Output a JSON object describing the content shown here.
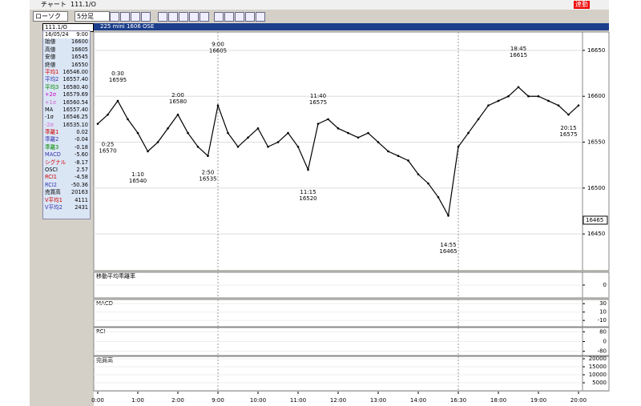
{
  "window": {
    "title": "チャート",
    "symbol": "111.1/O",
    "badge": "連動"
  },
  "toolbar": {
    "chart_type": "ローソク",
    "interval": "5分足"
  },
  "header": "225 mini 1606 OSE",
  "info": {
    "date": "16/05/24",
    "time": "9:00",
    "rows": [
      [
        "始値",
        "16600"
      ],
      [
        "高値",
        "16605"
      ],
      [
        "安値",
        "16545"
      ],
      [
        "終値",
        "16550"
      ],
      [
        "平均1",
        "16546.00"
      ],
      [
        "平均2",
        "16557.40"
      ],
      [
        "平均3",
        "16580.40"
      ],
      [
        "+2σ",
        "16579.69"
      ],
      [
        "+1σ",
        "16560.54"
      ],
      [
        "MA",
        "16557.40"
      ],
      [
        "-1σ",
        "16546.25"
      ],
      [
        "-2σ",
        "16535.10"
      ],
      [
        "乖離1",
        "0.02"
      ],
      [
        "乖離2",
        "-0.04"
      ],
      [
        "乖離3",
        "-0.18"
      ],
      [
        "MACD",
        "-5.60"
      ],
      [
        "シグナル",
        "-8.17"
      ],
      [
        "OSCI",
        "2.57"
      ],
      [
        "RCI1",
        "-4.58"
      ],
      [
        "RCI2",
        "-50.36"
      ],
      [
        "売買高",
        "20163"
      ],
      [
        "V平均1",
        "4111"
      ],
      [
        "V平均2",
        "2431"
      ]
    ]
  },
  "chart_data": [
    {
      "type": "line",
      "categories": [
        "0:00",
        null,
        null,
        null,
        "1:00",
        null,
        null,
        null,
        "2:00",
        null,
        null,
        null,
        "9:00",
        null,
        null,
        null,
        "10:00",
        null,
        null,
        null,
        "11:00",
        null,
        null,
        null,
        "12:00",
        null,
        null,
        null,
        "13:00",
        null,
        null,
        null,
        "14:00",
        null,
        null,
        null,
        "16:30",
        null,
        null,
        null,
        "18:00",
        null,
        null,
        null,
        "19:00",
        null,
        null,
        null,
        "20:00"
      ],
      "series": [
        {
          "name": "終値",
          "color": "#000000",
          "values": [
            16570,
            16580,
            16595,
            16575,
            16560,
            16540,
            16550,
            16565,
            16580,
            16560,
            16545,
            16535,
            16590,
            16560,
            16545,
            16555,
            16565,
            16545,
            16550,
            16560,
            16545,
            16520,
            16570,
            16575,
            16565,
            16560,
            16555,
            16560,
            16550,
            16540,
            16535,
            16530,
            16515,
            16505,
            16490,
            16470,
            16545,
            16560,
            16575,
            16590,
            16595,
            16600,
            16610,
            16600,
            16600,
            16595,
            16590,
            16580,
            16590
          ]
        }
      ],
      "ylim": [
        16410,
        16670
      ],
      "yticks": [
        16450,
        16500,
        16550,
        16600,
        16650
      ],
      "last": "16465",
      "annotations": [
        {
          "time": "0:30",
          "price": "16595"
        },
        {
          "time": "0:25",
          "price": "16570"
        },
        {
          "time": "1:10",
          "price": "16540"
        },
        {
          "time": "2:00",
          "price": "16580"
        },
        {
          "time": "2:50",
          "price": "16535"
        },
        {
          "time": "9:00",
          "price": "16605"
        },
        {
          "time": "11:15",
          "price": "16520"
        },
        {
          "time": "11:40",
          "price": "16575"
        },
        {
          "time": "14:55",
          "price": "16465"
        },
        {
          "time": "18:45",
          "price": "16615"
        },
        {
          "time": "20:15",
          "price": "16575"
        }
      ]
    },
    {
      "type": "indicator",
      "title": "移動平均乖離率",
      "ylim": [
        -1,
        1
      ],
      "yticks": [
        0
      ]
    },
    {
      "type": "indicator",
      "title": "MACD",
      "ylim": [
        -25,
        40
      ],
      "yticks": [
        30,
        10,
        -10
      ]
    },
    {
      "type": "indicator",
      "title": "RCI",
      "ylim": [
        -115,
        115
      ],
      "yticks": [
        80,
        0,
        -80
      ]
    },
    {
      "type": "indicator",
      "title": "売買高",
      "ylim": [
        0,
        21500
      ],
      "yticks": [
        20000,
        15000,
        10000,
        5000
      ]
    }
  ]
}
